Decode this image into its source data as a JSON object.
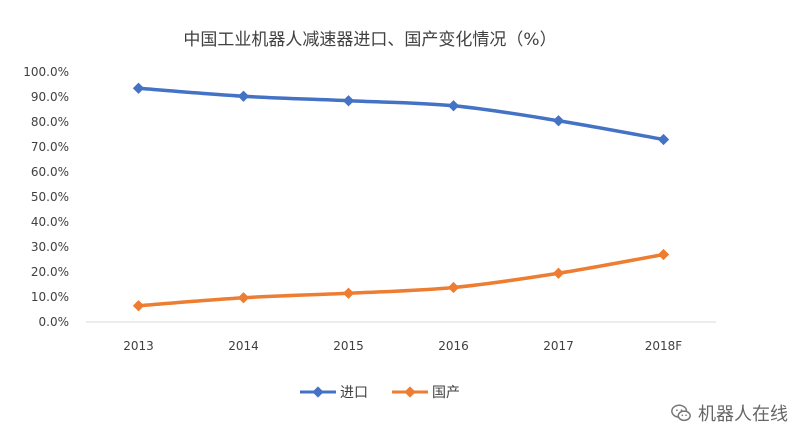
{
  "chart_data": {
    "type": "line",
    "title": "中国工业机器人减速器进口、国产变化情况（%）",
    "categories": [
      "2013",
      "2014",
      "2015",
      "2016",
      "2017",
      "2018F"
    ],
    "series": [
      {
        "name": "进口",
        "color": "#4472C4",
        "values": [
          93.5,
          90.3,
          88.5,
          86.5,
          80.5,
          73.0
        ]
      },
      {
        "name": "国产",
        "color": "#ED7D31",
        "values": [
          6.5,
          9.7,
          11.5,
          13.8,
          19.5,
          27.0
        ]
      }
    ],
    "ylim": [
      0,
      100
    ],
    "yticks": [
      "0.0%",
      "10.0%",
      "20.0%",
      "30.0%",
      "40.0%",
      "50.0%",
      "60.0%",
      "70.0%",
      "80.0%",
      "90.0%",
      "100.0%"
    ],
    "grid": false,
    "legend_position": "bottom"
  },
  "watermark": {
    "icon": "wechat-icon",
    "text": "机器人在线"
  }
}
